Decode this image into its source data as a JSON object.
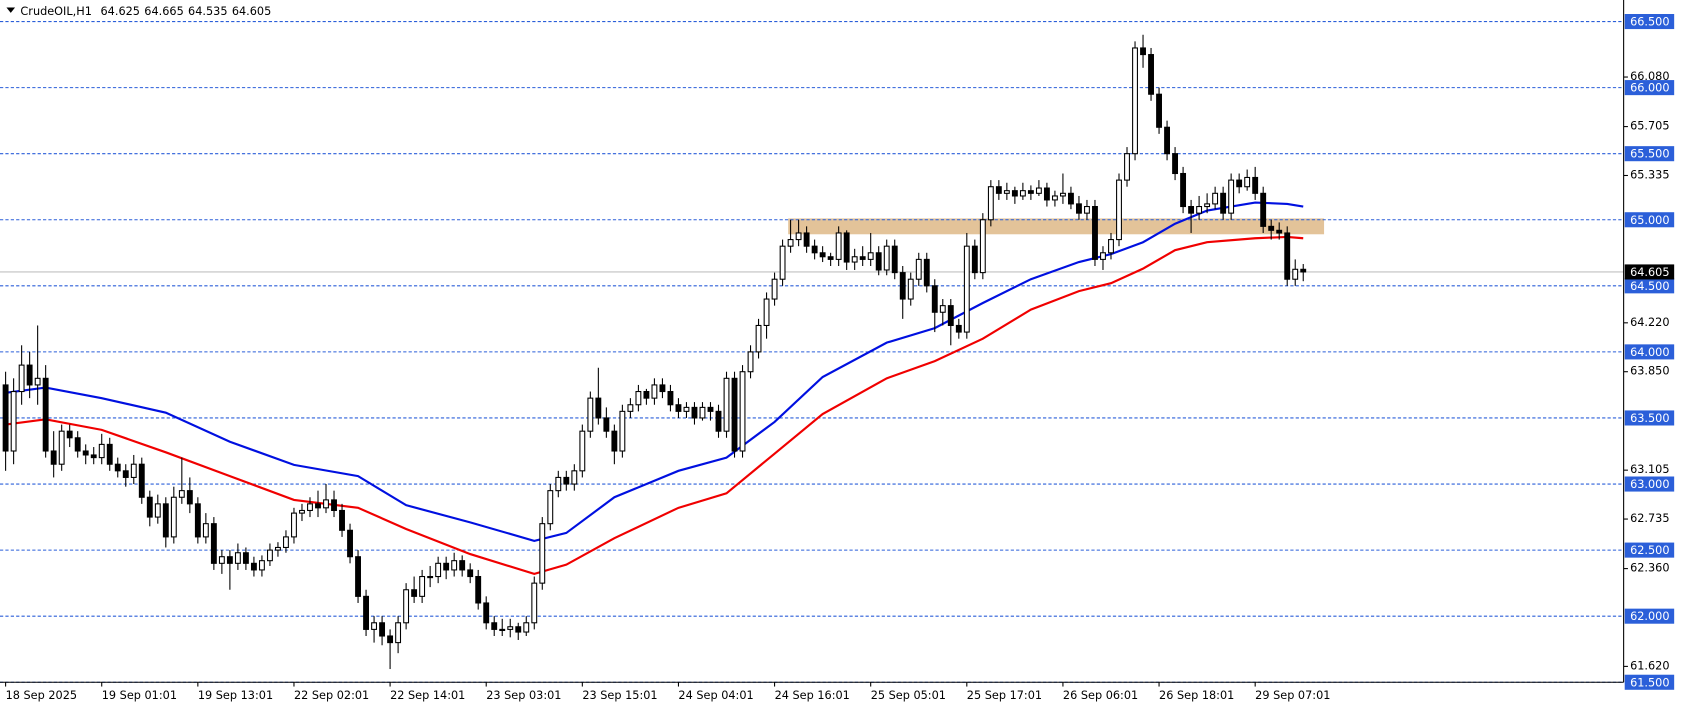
{
  "chart_data": {
    "type": "candlestick",
    "title": "CrudeOIL,H1",
    "bull_color": "#ffffff",
    "bear_color": "#000000",
    "xlim": [
      -0.7,
      202
    ],
    "ylim": [
      61.5,
      66.663
    ],
    "xticks": [
      {
        "value": 0,
        "label": "18 Sep 2025"
      },
      {
        "value": 12,
        "label": "19 Sep 01:01"
      },
      {
        "value": 24,
        "label": "19 Sep 13:01"
      },
      {
        "value": 36,
        "label": "22 Sep 02:01"
      },
      {
        "value": 48,
        "label": "22 Sep 14:01"
      },
      {
        "value": 60,
        "label": "23 Sep 03:01"
      },
      {
        "value": 72,
        "label": "23 Sep 15:01"
      },
      {
        "value": 84,
        "label": "24 Sep 04:01"
      },
      {
        "value": 96,
        "label": "24 Sep 16:01"
      },
      {
        "value": 108,
        "label": "25 Sep 05:01"
      },
      {
        "value": 120,
        "label": "25 Sep 17:01"
      },
      {
        "value": 132,
        "label": "26 Sep 06:01"
      },
      {
        "value": 144,
        "label": "26 Sep 18:01"
      },
      {
        "value": 156,
        "label": "29 Sep 07:01"
      }
    ],
    "yticks": [
      {
        "value": 66.08,
        "label": "66.080"
      },
      {
        "value": 65.705,
        "label": "65.705"
      },
      {
        "value": 65.335,
        "label": "65.335"
      },
      {
        "value": 64.22,
        "label": "64.220"
      },
      {
        "value": 63.85,
        "label": "63.850"
      },
      {
        "value": 63.105,
        "label": "63.105"
      },
      {
        "value": 62.735,
        "label": "62.735"
      },
      {
        "value": 62.36,
        "label": "62.360"
      },
      {
        "value": 61.62,
        "label": "61.620"
      }
    ],
    "levels": [
      {
        "value": 66.5,
        "label": "66.500"
      },
      {
        "value": 66,
        "label": "66.000"
      },
      {
        "value": 65.5,
        "label": "65.500"
      },
      {
        "value": 65,
        "label": "65.000"
      },
      {
        "value": 64.5,
        "label": "64.500"
      },
      {
        "value": 64,
        "label": "64.000"
      },
      {
        "value": 63.5,
        "label": "63.500"
      },
      {
        "value": 63,
        "label": "63.000"
      },
      {
        "value": 62.5,
        "label": "62.500"
      },
      {
        "value": 62,
        "label": "62.000"
      },
      {
        "value": 61.5,
        "label": "61.500"
      }
    ],
    "level_color": "#2b5fd9",
    "zone": {
      "x": [
        97.7,
        164.6
      ],
      "y": [
        64.89,
        65.01
      ],
      "color": "#deb887"
    },
    "ma": [
      {
        "color": "#0010e0",
        "x": [
          0,
          5,
          12,
          20,
          28,
          36,
          44,
          50,
          58,
          66,
          70,
          76,
          84,
          90,
          96,
          102,
          110,
          116,
          122,
          128,
          134,
          138,
          142,
          146,
          150,
          156,
          160,
          162
        ],
        "values": [
          63.69,
          63.73,
          63.65,
          63.54,
          63.32,
          63.145,
          63.06,
          62.84,
          62.71,
          62.57,
          62.63,
          62.9,
          63.1,
          63.2,
          63.47,
          63.81,
          64.07,
          64.18,
          64.37,
          64.55,
          64.68,
          64.74,
          64.83,
          64.97,
          65.07,
          65.13,
          65.12,
          65.1
        ]
      },
      {
        "color": "#f00000",
        "x": [
          0,
          5,
          12,
          20,
          28,
          36,
          44,
          50,
          58,
          66,
          70,
          76,
          84,
          90,
          96,
          102,
          110,
          116,
          122,
          128,
          134,
          138,
          142,
          146,
          150,
          156,
          160,
          162
        ],
        "values": [
          63.45,
          63.49,
          63.41,
          63.24,
          63.06,
          62.88,
          62.82,
          62.66,
          62.47,
          62.32,
          62.39,
          62.59,
          62.82,
          62.93,
          63.23,
          63.53,
          63.8,
          63.93,
          64.1,
          64.32,
          64.46,
          64.52,
          64.63,
          64.77,
          64.83,
          64.86,
          64.87,
          64.86
        ]
      }
    ],
    "ohlc": [
      [
        63.75,
        63.85,
        63.1,
        63.25
      ],
      [
        63.25,
        63.8,
        63.15,
        63.7
      ],
      [
        63.7,
        64.05,
        63.6,
        63.9
      ],
      [
        63.9,
        64.0,
        63.65,
        63.75
      ],
      [
        63.75,
        64.2,
        63.6,
        63.8
      ],
      [
        63.8,
        63.9,
        63.2,
        63.25
      ],
      [
        63.25,
        63.4,
        63.05,
        63.15
      ],
      [
        63.15,
        63.45,
        63.1,
        63.4
      ],
      [
        63.4,
        63.45,
        63.28,
        63.35
      ],
      [
        63.35,
        63.4,
        63.2,
        63.25
      ],
      [
        63.25,
        63.3,
        63.15,
        63.22
      ],
      [
        63.22,
        63.28,
        63.15,
        63.2
      ],
      [
        63.2,
        63.38,
        63.15,
        63.3
      ],
      [
        63.3,
        63.35,
        63.1,
        63.15
      ],
      [
        63.15,
        63.2,
        63.05,
        63.1
      ],
      [
        63.1,
        63.15,
        62.98,
        63.05
      ],
      [
        63.05,
        63.22,
        63.0,
        63.15
      ],
      [
        63.15,
        63.2,
        62.85,
        62.9
      ],
      [
        62.9,
        62.95,
        62.68,
        62.75
      ],
      [
        62.75,
        62.92,
        62.7,
        62.85
      ],
      [
        62.85,
        62.9,
        62.52,
        62.6
      ],
      [
        62.6,
        62.98,
        62.55,
        62.9
      ],
      [
        62.9,
        63.2,
        62.85,
        62.95
      ],
      [
        62.95,
        63.05,
        62.78,
        62.85
      ],
      [
        62.85,
        62.9,
        62.55,
        62.6
      ],
      [
        62.6,
        62.78,
        62.55,
        62.7
      ],
      [
        62.7,
        62.75,
        62.35,
        62.4
      ],
      [
        62.4,
        62.5,
        62.32,
        62.45
      ],
      [
        62.45,
        62.5,
        62.2,
        62.4
      ],
      [
        62.4,
        62.55,
        62.35,
        62.48
      ],
      [
        62.48,
        62.52,
        62.35,
        62.4
      ],
      [
        62.4,
        62.45,
        62.3,
        62.35
      ],
      [
        62.35,
        62.46,
        62.3,
        62.42
      ],
      [
        62.42,
        62.55,
        62.38,
        62.5
      ],
      [
        62.5,
        62.56,
        62.45,
        62.52
      ],
      [
        62.52,
        62.65,
        62.48,
        62.6
      ],
      [
        62.6,
        62.82,
        62.55,
        62.78
      ],
      [
        62.78,
        62.85,
        62.72,
        62.8
      ],
      [
        62.8,
        62.9,
        62.75,
        62.85
      ],
      [
        62.85,
        62.95,
        62.75,
        62.82
      ],
      [
        62.82,
        63.0,
        62.78,
        62.88
      ],
      [
        62.88,
        62.95,
        62.75,
        62.8
      ],
      [
        62.8,
        62.85,
        62.6,
        62.65
      ],
      [
        62.65,
        62.7,
        62.4,
        62.45
      ],
      [
        62.45,
        62.5,
        62.1,
        62.15
      ],
      [
        62.15,
        62.2,
        61.85,
        61.9
      ],
      [
        61.9,
        62.0,
        61.8,
        61.95
      ],
      [
        61.95,
        62.0,
        61.78,
        61.85
      ],
      [
        61.85,
        61.9,
        61.6,
        61.8
      ],
      [
        61.8,
        62.0,
        61.72,
        61.95
      ],
      [
        61.95,
        62.25,
        61.9,
        62.2
      ],
      [
        62.2,
        62.3,
        62.1,
        62.15
      ],
      [
        62.15,
        62.35,
        62.1,
        62.3
      ],
      [
        62.3,
        62.38,
        62.22,
        62.3
      ],
      [
        62.3,
        62.45,
        62.25,
        62.4
      ],
      [
        62.4,
        62.45,
        62.28,
        62.35
      ],
      [
        62.35,
        62.48,
        62.3,
        62.42
      ],
      [
        62.42,
        62.46,
        62.3,
        62.35
      ],
      [
        62.35,
        62.4,
        62.25,
        62.3
      ],
      [
        62.3,
        62.35,
        62.05,
        62.1
      ],
      [
        62.1,
        62.15,
        61.9,
        61.95
      ],
      [
        61.95,
        62.0,
        61.85,
        61.9
      ],
      [
        61.9,
        61.98,
        61.85,
        61.9
      ],
      [
        61.9,
        61.98,
        61.84,
        61.92
      ],
      [
        61.92,
        61.95,
        61.82,
        61.88
      ],
      [
        61.88,
        62.0,
        61.85,
        61.95
      ],
      [
        61.95,
        62.3,
        61.9,
        62.25
      ],
      [
        62.25,
        62.75,
        62.2,
        62.7
      ],
      [
        62.7,
        63.0,
        62.65,
        62.95
      ],
      [
        62.95,
        63.1,
        62.9,
        63.05
      ],
      [
        63.05,
        63.1,
        62.95,
        63.0
      ],
      [
        63.0,
        63.15,
        62.95,
        63.1
      ],
      [
        63.1,
        63.45,
        63.05,
        63.4
      ],
      [
        63.4,
        63.7,
        63.35,
        63.65
      ],
      [
        63.65,
        63.88,
        63.45,
        63.5
      ],
      [
        63.5,
        63.58,
        63.35,
        63.4
      ],
      [
        63.4,
        63.45,
        63.15,
        63.25
      ],
      [
        63.25,
        63.6,
        63.2,
        63.55
      ],
      [
        63.55,
        63.65,
        63.5,
        63.6
      ],
      [
        63.6,
        63.75,
        63.55,
        63.7
      ],
      [
        63.7,
        63.72,
        63.6,
        63.65
      ],
      [
        63.65,
        63.8,
        63.6,
        63.75
      ],
      [
        63.75,
        63.8,
        63.65,
        63.7
      ],
      [
        63.7,
        63.75,
        63.55,
        63.6
      ],
      [
        63.6,
        63.65,
        63.5,
        63.55
      ],
      [
        63.55,
        63.62,
        63.5,
        63.58
      ],
      [
        63.58,
        63.62,
        63.45,
        63.5
      ],
      [
        63.5,
        63.62,
        63.48,
        63.58
      ],
      [
        63.58,
        63.62,
        63.48,
        63.55
      ],
      [
        63.55,
        63.6,
        63.35,
        63.4
      ],
      [
        63.4,
        63.85,
        63.35,
        63.8
      ],
      [
        63.8,
        63.85,
        63.2,
        63.25
      ],
      [
        63.25,
        63.9,
        63.2,
        63.85
      ],
      [
        63.85,
        64.05,
        63.8,
        64.0
      ],
      [
        64.0,
        64.25,
        63.95,
        64.2
      ],
      [
        64.2,
        64.45,
        64.1,
        64.4
      ],
      [
        64.4,
        64.6,
        64.35,
        64.55
      ],
      [
        64.55,
        64.85,
        64.5,
        64.8
      ],
      [
        64.8,
        65.0,
        64.75,
        64.85
      ],
      [
        64.85,
        65.0,
        64.8,
        64.9
      ],
      [
        64.9,
        64.95,
        64.75,
        64.8
      ],
      [
        64.8,
        64.85,
        64.7,
        64.75
      ],
      [
        64.75,
        64.8,
        64.68,
        64.72
      ],
      [
        64.72,
        64.75,
        64.65,
        64.7
      ],
      [
        64.7,
        64.95,
        64.65,
        64.9
      ],
      [
        64.9,
        64.92,
        64.62,
        64.68
      ],
      [
        64.68,
        64.78,
        64.62,
        64.72
      ],
      [
        64.72,
        64.8,
        64.65,
        64.7
      ],
      [
        64.7,
        64.9,
        64.65,
        64.75
      ],
      [
        64.75,
        64.8,
        64.58,
        64.62
      ],
      [
        64.62,
        64.85,
        64.58,
        64.8
      ],
      [
        64.8,
        64.85,
        64.55,
        64.6
      ],
      [
        64.6,
        64.65,
        64.25,
        64.4
      ],
      [
        64.4,
        64.6,
        64.35,
        64.55
      ],
      [
        64.55,
        64.75,
        64.5,
        64.7
      ],
      [
        64.7,
        64.75,
        64.45,
        64.5
      ],
      [
        64.5,
        64.55,
        64.15,
        64.3
      ],
      [
        64.3,
        64.4,
        64.2,
        64.35
      ],
      [
        64.35,
        64.4,
        64.05,
        64.2
      ],
      [
        64.2,
        64.25,
        64.1,
        64.15
      ],
      [
        64.15,
        64.9,
        64.1,
        64.8
      ],
      [
        64.8,
        64.85,
        64.55,
        64.6
      ],
      [
        64.6,
        65.05,
        64.55,
        65.0
      ],
      [
        65.0,
        65.3,
        64.95,
        65.25
      ],
      [
        65.25,
        65.3,
        65.15,
        65.2
      ],
      [
        65.2,
        65.28,
        65.15,
        65.22
      ],
      [
        65.22,
        65.25,
        65.12,
        65.18
      ],
      [
        65.18,
        65.28,
        65.15,
        65.22
      ],
      [
        65.22,
        65.26,
        65.15,
        65.2
      ],
      [
        65.2,
        65.3,
        65.18,
        65.24
      ],
      [
        65.24,
        65.28,
        65.1,
        65.15
      ],
      [
        65.15,
        65.22,
        65.1,
        65.18
      ],
      [
        65.18,
        65.35,
        65.12,
        65.2
      ],
      [
        65.2,
        65.25,
        65.08,
        65.12
      ],
      [
        65.12,
        65.18,
        65.0,
        65.05
      ],
      [
        65.05,
        65.15,
        65.0,
        65.1
      ],
      [
        65.1,
        65.15,
        64.65,
        64.7
      ],
      [
        64.7,
        64.8,
        64.62,
        64.75
      ],
      [
        64.75,
        64.9,
        64.7,
        64.85
      ],
      [
        64.85,
        65.35,
        64.8,
        65.3
      ],
      [
        65.3,
        65.55,
        65.25,
        65.5
      ],
      [
        65.5,
        66.35,
        65.45,
        66.3
      ],
      [
        66.3,
        66.4,
        66.15,
        66.25
      ],
      [
        66.25,
        66.3,
        65.9,
        65.95
      ],
      [
        65.95,
        66.0,
        65.65,
        65.7
      ],
      [
        65.7,
        65.75,
        65.45,
        65.5
      ],
      [
        65.5,
        65.55,
        65.3,
        65.35
      ],
      [
        65.35,
        65.4,
        65.05,
        65.1
      ],
      [
        65.1,
        65.15,
        64.9,
        65.05
      ],
      [
        65.05,
        65.18,
        65.0,
        65.1
      ],
      [
        65.1,
        65.2,
        65.05,
        65.12
      ],
      [
        65.12,
        65.25,
        65.08,
        65.2
      ],
      [
        65.2,
        65.25,
        65.0,
        65.05
      ],
      [
        65.05,
        65.35,
        65.0,
        65.3
      ],
      [
        65.3,
        65.35,
        65.2,
        65.25
      ],
      [
        65.25,
        65.38,
        65.22,
        65.32
      ],
      [
        65.32,
        65.4,
        65.15,
        65.2
      ],
      [
        65.2,
        65.25,
        64.9,
        64.95
      ],
      [
        64.95,
        65.0,
        64.85,
        64.92
      ],
      [
        64.92,
        64.98,
        64.85,
        64.9
      ],
      [
        64.9,
        64.95,
        64.5,
        64.55
      ],
      [
        64.55,
        64.7,
        64.5,
        64.625
      ],
      [
        64.625,
        64.665,
        64.535,
        64.605
      ]
    ]
  }
}
